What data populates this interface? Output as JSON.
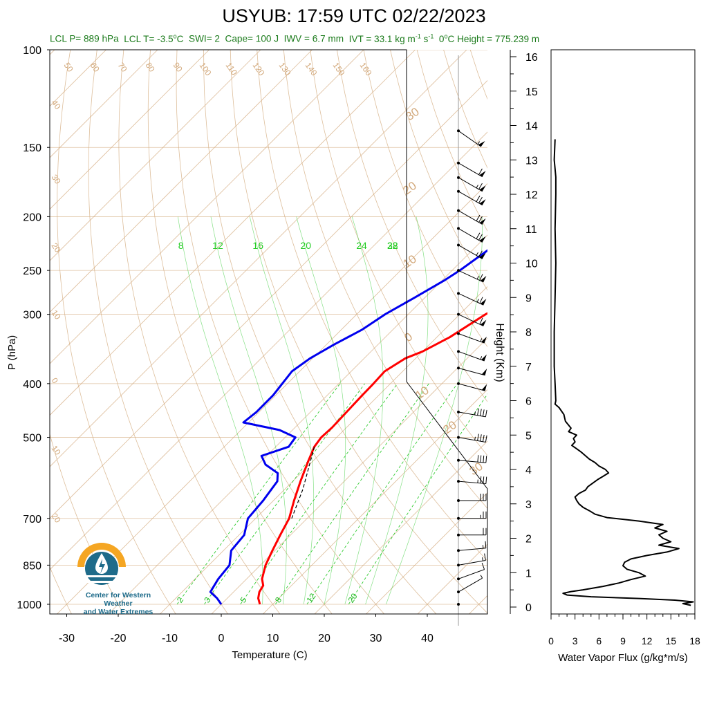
{
  "title": "USYUB: 17:59 UTC 02/22/2023",
  "subtitle": {
    "lcl_p": "LCL P= 889 hPa",
    "lcl_t_pre": "LCL T= -3.5",
    "lcl_t_deg": "o",
    "lcl_t_post": "C",
    "swi": "SWI= 2",
    "cape": "Cape= 100 J",
    "iwv": "IWV = 6.7 mm",
    "ivt_pre": "IVT = 33.1 kg m",
    "ivt_exp1": "-1",
    "ivt_mid": " s",
    "ivt_exp2": "-1",
    "height_pre": "0",
    "height_deg": "o",
    "height_post": "C Height = 775.239 m"
  },
  "logo": {
    "line1": "Center for Western Weather",
    "line2": "and Water Extremes"
  },
  "colors": {
    "temperature": "#ff0000",
    "dewpoint": "#0000ee",
    "isotherm": "#d2a87a",
    "mixing_ratio": "#33cc33",
    "wet_adiabat": "#33cc33",
    "annotation": "#1a7a1a",
    "logo_orange": "#f5a623",
    "logo_blue": "#1e6b8a"
  },
  "chart_data": [
    {
      "type": "line",
      "name": "skew-t",
      "xlabel": "Temperature (C)",
      "ylabel": "P (hPa)",
      "x_ticks": [
        "-30",
        "-20",
        "-10",
        "0",
        "10",
        "20",
        "30",
        "40"
      ],
      "y_ticks": [
        "100",
        "150",
        "200",
        "250",
        "300",
        "400",
        "500",
        "700",
        "850",
        "1000"
      ],
      "xlim": [
        -34,
        51
      ],
      "ylim": [
        1050,
        100
      ],
      "y_scale": "log",
      "temperature_profile": [
        [
          1000,
          7.5
        ],
        [
          975,
          6.0
        ],
        [
          950,
          5.0
        ],
        [
          925,
          4.5
        ],
        [
          900,
          3.0
        ],
        [
          850,
          1.0
        ],
        [
          800,
          -0.5
        ],
        [
          750,
          -2.0
        ],
        [
          700,
          -3.5
        ],
        [
          650,
          -6.0
        ],
        [
          600,
          -8.5
        ],
        [
          550,
          -11.0
        ],
        [
          520,
          -12.5
        ],
        [
          500,
          -13.0
        ],
        [
          480,
          -12.8
        ],
        [
          450,
          -13.0
        ],
        [
          420,
          -13.2
        ],
        [
          400,
          -13.3
        ],
        [
          380,
          -13.5
        ],
        [
          360,
          -12.0
        ],
        [
          350,
          -10.0
        ],
        [
          330,
          -7.5
        ],
        [
          300,
          -5.0
        ],
        [
          280,
          -2.5
        ],
        [
          250,
          0.0
        ],
        [
          225,
          3.0
        ],
        [
          200,
          6.0
        ],
        [
          175,
          8.0
        ],
        [
          160,
          10.5
        ],
        [
          150,
          11.5
        ]
      ],
      "dewpoint_profile": [
        [
          1000,
          0.0
        ],
        [
          975,
          -2.0
        ],
        [
          950,
          -4.5
        ],
        [
          925,
          -5.0
        ],
        [
          900,
          -5.5
        ],
        [
          850,
          -6.0
        ],
        [
          800,
          -8.5
        ],
        [
          750,
          -9.0
        ],
        [
          700,
          -11.5
        ],
        [
          650,
          -12.0
        ],
        [
          600,
          -13.0
        ],
        [
          580,
          -14.5
        ],
        [
          560,
          -18.5
        ],
        [
          540,
          -21.0
        ],
        [
          520,
          -17.5
        ],
        [
          500,
          -18.0
        ],
        [
          485,
          -22.5
        ],
        [
          470,
          -31.0
        ],
        [
          450,
          -30.5
        ],
        [
          420,
          -30.5
        ],
        [
          400,
          -31.0
        ],
        [
          380,
          -31.5
        ],
        [
          360,
          -30.5
        ],
        [
          340,
          -28.5
        ],
        [
          320,
          -26.0
        ],
        [
          300,
          -24.5
        ],
        [
          280,
          -22.0
        ],
        [
          260,
          -19.5
        ],
        [
          250,
          -18.5
        ],
        [
          230,
          -17.0
        ],
        [
          200,
          -15.5
        ],
        [
          180,
          -13.5
        ],
        [
          165,
          -12.0
        ],
        [
          150,
          -10.0
        ]
      ],
      "parcel_path": [
        [
          520,
          -12.5
        ],
        [
          620,
          -6.5
        ],
        [
          700,
          -3.0
        ]
      ],
      "mixing_ratio_labels": [
        "2",
        "3",
        "5",
        "8",
        "12",
        "20"
      ],
      "mixing_ratio_values": [
        2,
        3,
        5,
        8,
        12,
        20
      ],
      "wet_adiabat_labels": [
        "8",
        "12",
        "16",
        "20",
        "24",
        "28",
        "32"
      ],
      "wet_adiabat_values": [
        8,
        12,
        16,
        20,
        24,
        28,
        32
      ],
      "dry_adiabat_labels": [
        "50",
        "60",
        "70",
        "80",
        "90",
        "100",
        "110",
        "120",
        "130",
        "140",
        "150",
        "160",
        "40",
        "30",
        "20",
        "10",
        "0",
        "10",
        "20"
      ],
      "skew_iso_labels_right": [
        "30",
        "20",
        "10",
        "0",
        "10",
        "20",
        "30"
      ],
      "wind_barbs": [
        {
          "p": 1000,
          "dir": 200,
          "spd": 0
        },
        {
          "p": 950,
          "dir": 240,
          "spd": 5
        },
        {
          "p": 900,
          "dir": 250,
          "spd": 10
        },
        {
          "p": 850,
          "dir": 260,
          "spd": 15
        },
        {
          "p": 800,
          "dir": 265,
          "spd": 15
        },
        {
          "p": 750,
          "dir": 270,
          "spd": 20
        },
        {
          "p": 700,
          "dir": 270,
          "spd": 25
        },
        {
          "p": 650,
          "dir": 270,
          "spd": 30
        },
        {
          "p": 600,
          "dir": 275,
          "spd": 35
        },
        {
          "p": 550,
          "dir": 275,
          "spd": 40
        },
        {
          "p": 500,
          "dir": 280,
          "spd": 45
        },
        {
          "p": 450,
          "dir": 280,
          "spd": 45
        },
        {
          "p": 400,
          "dir": 285,
          "spd": 50
        },
        {
          "p": 375,
          "dir": 285,
          "spd": 50
        },
        {
          "p": 350,
          "dir": 290,
          "spd": 55
        },
        {
          "p": 325,
          "dir": 290,
          "spd": 55
        },
        {
          "p": 300,
          "dir": 295,
          "spd": 60
        },
        {
          "p": 275,
          "dir": 295,
          "spd": 65
        },
        {
          "p": 250,
          "dir": 295,
          "spd": 65
        },
        {
          "p": 225,
          "dir": 300,
          "spd": 65
        },
        {
          "p": 210,
          "dir": 300,
          "spd": 70
        },
        {
          "p": 195,
          "dir": 300,
          "spd": 70
        },
        {
          "p": 180,
          "dir": 300,
          "spd": 70
        },
        {
          "p": 170,
          "dir": 300,
          "spd": 65
        },
        {
          "p": 160,
          "dir": 300,
          "spd": 60
        },
        {
          "p": 140,
          "dir": 305,
          "spd": 55
        }
      ]
    },
    {
      "type": "line",
      "name": "water-vapor-flux",
      "xlabel": "Water Vapor Flux (g/kg*m/s)",
      "ylabel": "Height (Km)",
      "x_ticks": [
        "0",
        "3",
        "6",
        "9",
        "12",
        "15",
        "18"
      ],
      "y_ticks": [
        "0",
        "1",
        "2",
        "3",
        "4",
        "5",
        "6",
        "7",
        "8",
        "9",
        "10",
        "11",
        "12",
        "13",
        "14",
        "15",
        "16"
      ],
      "xlim": [
        0,
        18
      ],
      "ylim": [
        -0.2,
        16.8
      ],
      "points": [
        [
          0.05,
          17.5
        ],
        [
          0.1,
          16.5
        ],
        [
          0.15,
          17.8
        ],
        [
          0.2,
          15.5
        ],
        [
          0.25,
          11.0
        ],
        [
          0.3,
          5.0
        ],
        [
          0.35,
          2.0
        ],
        [
          0.4,
          1.5
        ],
        [
          0.45,
          2.5
        ],
        [
          0.5,
          4.0
        ],
        [
          0.6,
          6.5
        ],
        [
          0.7,
          8.5
        ],
        [
          0.8,
          10.0
        ],
        [
          0.9,
          11.8
        ],
        [
          1.0,
          11.0
        ],
        [
          1.1,
          9.5
        ],
        [
          1.2,
          9.0
        ],
        [
          1.3,
          9.2
        ],
        [
          1.4,
          10.0
        ],
        [
          1.5,
          12.0
        ],
        [
          1.6,
          14.5
        ],
        [
          1.7,
          16.0
        ],
        [
          1.8,
          13.5
        ],
        [
          1.9,
          15.0
        ],
        [
          2.0,
          14.0
        ],
        [
          2.1,
          13.5
        ],
        [
          2.2,
          14.5
        ],
        [
          2.3,
          13.0
        ],
        [
          2.4,
          14.0
        ],
        [
          2.5,
          11.0
        ],
        [
          2.6,
          7.0
        ],
        [
          2.7,
          5.5
        ],
        [
          2.8,
          4.8
        ],
        [
          2.9,
          4.0
        ],
        [
          3.0,
          3.5
        ],
        [
          3.1,
          3.2
        ],
        [
          3.2,
          3.0
        ],
        [
          3.3,
          3.5
        ],
        [
          3.4,
          4.3
        ],
        [
          3.5,
          4.6
        ],
        [
          3.6,
          5.2
        ],
        [
          3.7,
          5.8
        ],
        [
          3.8,
          6.5
        ],
        [
          3.9,
          7.2
        ],
        [
          4.0,
          6.8
        ],
        [
          4.1,
          6.0
        ],
        [
          4.2,
          5.5
        ],
        [
          4.3,
          4.8
        ],
        [
          4.4,
          4.3
        ],
        [
          4.5,
          3.8
        ],
        [
          4.6,
          3.2
        ],
        [
          4.7,
          2.6
        ],
        [
          4.8,
          3.0
        ],
        [
          4.9,
          2.8
        ],
        [
          5.0,
          3.2
        ],
        [
          5.1,
          2.2
        ],
        [
          5.2,
          2.5
        ],
        [
          5.4,
          1.8
        ],
        [
          5.6,
          1.6
        ],
        [
          5.8,
          1.0
        ],
        [
          5.9,
          0.5
        ],
        [
          6.0,
          0.6
        ],
        [
          6.5,
          0.5
        ],
        [
          7.0,
          0.4
        ],
        [
          8.0,
          0.4
        ],
        [
          9.0,
          0.5
        ],
        [
          10.0,
          0.6
        ],
        [
          11.0,
          0.5
        ],
        [
          12.0,
          0.6
        ],
        [
          12.5,
          0.6
        ],
        [
          13.0,
          0.4
        ],
        [
          13.6,
          0.5
        ]
      ]
    }
  ]
}
